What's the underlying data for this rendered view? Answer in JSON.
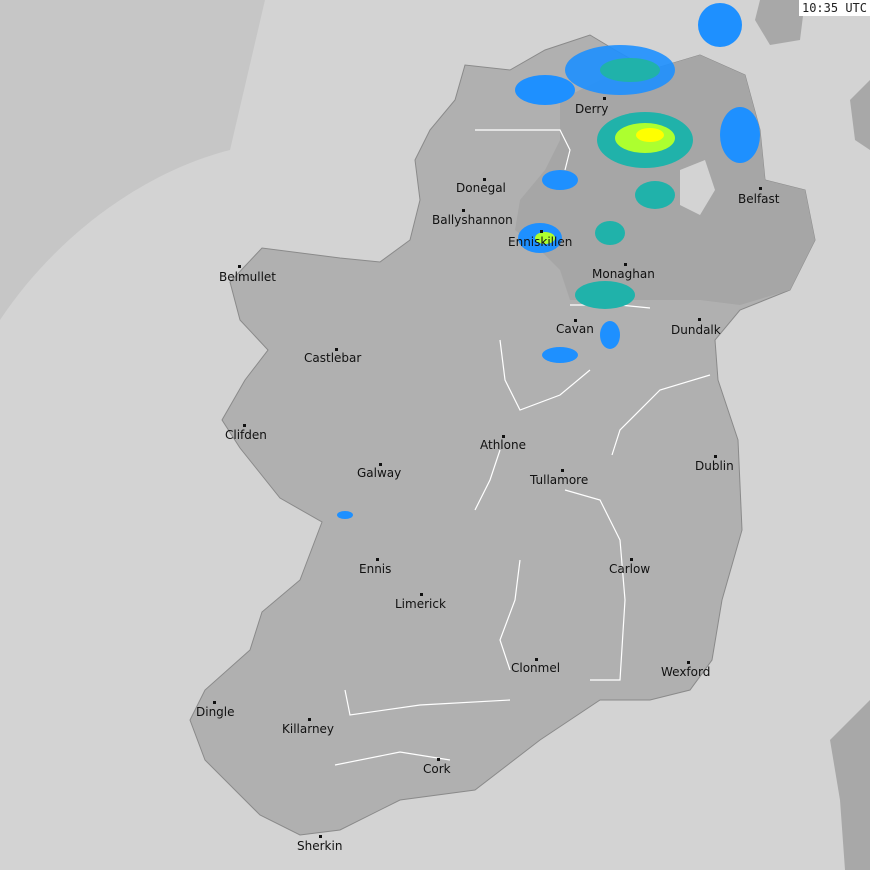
{
  "timestamp": "10:35 UTC",
  "colors": {
    "sea": "#d3d3d3",
    "land": "#b0b0b0",
    "land_ni": "#a6a6a6",
    "radar_light": "#1e90ff",
    "radar_mid": "#20b2aa",
    "radar_heavy": "#ffff00"
  },
  "cities": [
    {
      "name": "Derry"
    },
    {
      "name": "Donegal"
    },
    {
      "name": "Ballyshannon"
    },
    {
      "name": "Enniskillen"
    },
    {
      "name": "Belfast"
    },
    {
      "name": "Monaghan"
    },
    {
      "name": "Belmullet"
    },
    {
      "name": "Cavan"
    },
    {
      "name": "Dundalk"
    },
    {
      "name": "Castlebar"
    },
    {
      "name": "Clifden"
    },
    {
      "name": "Athlone"
    },
    {
      "name": "Dublin"
    },
    {
      "name": "Galway"
    },
    {
      "name": "Tullamore"
    },
    {
      "name": "Ennis"
    },
    {
      "name": "Carlow"
    },
    {
      "name": "Limerick"
    },
    {
      "name": "Clonmel"
    },
    {
      "name": "Wexford"
    },
    {
      "name": "Dingle"
    },
    {
      "name": "Killarney"
    },
    {
      "name": "Cork"
    },
    {
      "name": "Sherkin"
    }
  ]
}
